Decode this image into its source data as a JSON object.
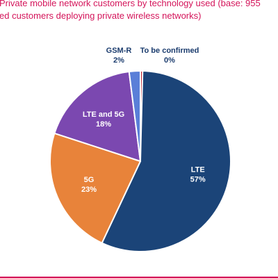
{
  "title": {
    "line1": "Private mobile network customers by technology used (base: 955",
    "line2": "ed customers deploying private wireless networks)"
  },
  "colors": {
    "title": "#d4145a",
    "LTE": "#1b4478",
    "5G": "#e8833a",
    "LTE and 5G": "#7b48b0",
    "GSM-R": "#5a7fd8",
    "To be confirmed": "#c0232f",
    "outside_label": "#1b3c6e",
    "inside_label": "#ffffff"
  },
  "chart_data": {
    "type": "pie",
    "title": "Private mobile network customers by technology used (base: 955 ed customers deploying private wireless networks)",
    "categories": [
      "LTE",
      "5G",
      "LTE and 5G",
      "GSM-R",
      "To be confirmed"
    ],
    "values": [
      57,
      23,
      18,
      2,
      0
    ],
    "value_labels": [
      "57%",
      "23%",
      "18%",
      "2%",
      "0%"
    ],
    "start_angle_deg": 0,
    "direction": "clockwise",
    "legend": "none",
    "labels_on_slices": true
  }
}
